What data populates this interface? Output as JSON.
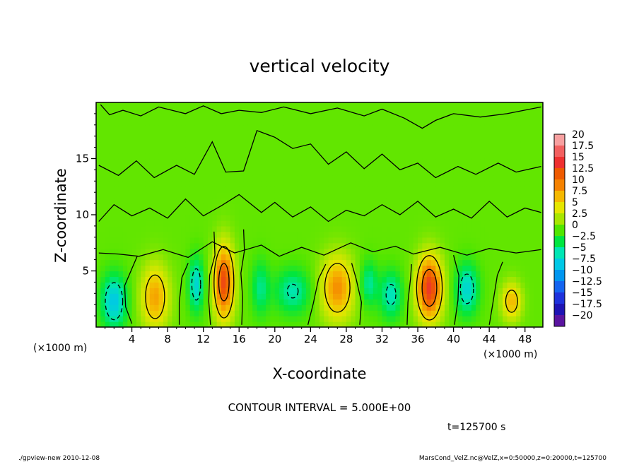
{
  "chart_data": {
    "type": "heatmap",
    "title": "vertical velocity",
    "xlabel": "X-coordinate",
    "ylabel": "Z-coordinate",
    "x_unit": "(×1000 m)",
    "y_unit": "(×1000 m)",
    "xlim": [
      0,
      50
    ],
    "ylim": [
      0,
      20
    ],
    "x_ticks": [
      "4",
      "8",
      "12",
      "16",
      "20",
      "24",
      "28",
      "32",
      "36",
      "40",
      "44",
      "48"
    ],
    "x_tick_values": [
      4,
      8,
      12,
      16,
      20,
      24,
      28,
      32,
      36,
      40,
      44,
      48
    ],
    "y_ticks": [
      "5",
      "10",
      "15"
    ],
    "y_tick_values": [
      5,
      10,
      15
    ],
    "contour_interval_text": "CONTOUR INTERVAL = 5.000E+00",
    "time_text": "t=125700 s",
    "colorbar": {
      "labels": [
        "20",
        "17.5",
        "15",
        "12.5",
        "10",
        "7.5",
        "5",
        "2.5",
        "0",
        "−2.5",
        "−5",
        "−7.5",
        "−10",
        "−12.5",
        "−15",
        "−17.5",
        "−20"
      ],
      "values": [
        20,
        17.5,
        15,
        12.5,
        10,
        7.5,
        5,
        2.5,
        0,
        -2.5,
        -5,
        -7.5,
        -10,
        -12.5,
        -15,
        -17.5,
        -20
      ],
      "colors": [
        "#f7a0a0",
        "#f26060",
        "#ee3030",
        "#ee5a00",
        "#f58200",
        "#f5b800",
        "#e6e600",
        "#a8e600",
        "#50e600",
        "#00e640",
        "#00e6b4",
        "#00c8e6",
        "#0096f0",
        "#1464f0",
        "#1e32dc",
        "#1e14b4",
        "#5a14a0"
      ]
    },
    "background_w": 0.5,
    "features": [
      {
        "x": 2.0,
        "z": 2.3,
        "w": -8,
        "sx": 1.0,
        "sz": 1.7
      },
      {
        "x": 6.6,
        "z": 2.7,
        "w": 8,
        "sx": 1.1,
        "sz": 2.0
      },
      {
        "x": 11.2,
        "z": 3.8,
        "w": -7,
        "sx": 0.6,
        "sz": 1.7
      },
      {
        "x": 14.3,
        "z": 4.0,
        "w": 13,
        "sx": 0.8,
        "sz": 2.3
      },
      {
        "x": 18.4,
        "z": 3.5,
        "w": -4.5,
        "sx": 0.7,
        "sz": 1.7
      },
      {
        "x": 22.0,
        "z": 3.2,
        "w": -5.5,
        "sx": 1.4,
        "sz": 1.4
      },
      {
        "x": 27.0,
        "z": 3.5,
        "w": 9,
        "sx": 1.3,
        "sz": 2.0
      },
      {
        "x": 30.5,
        "z": 3.9,
        "w": -5,
        "sx": 0.7,
        "sz": 1.4
      },
      {
        "x": 33.0,
        "z": 2.9,
        "w": -6,
        "sx": 0.9,
        "sz": 1.5
      },
      {
        "x": 37.3,
        "z": 3.5,
        "w": 14,
        "sx": 1.0,
        "sz": 2.0
      },
      {
        "x": 41.5,
        "z": 3.4,
        "w": -7,
        "sx": 0.9,
        "sz": 1.6
      },
      {
        "x": 46.5,
        "z": 2.3,
        "w": 7,
        "sx": 0.8,
        "sz": 1.2
      }
    ],
    "zero_contours": [
      [
        [
          4.0,
          0.3
        ],
        [
          3.3,
          1.8
        ],
        [
          3.2,
          3.7
        ],
        [
          4.0,
          5.2
        ],
        [
          4.6,
          6.3
        ]
      ],
      [
        [
          9.3,
          0.2
        ],
        [
          9.3,
          2.2
        ],
        [
          9.6,
          4.4
        ],
        [
          10.3,
          5.7
        ]
      ],
      [
        [
          12.8,
          0.2
        ],
        [
          12.6,
          2.3
        ],
        [
          12.7,
          4.6
        ],
        [
          13.3,
          6.4
        ],
        [
          13.2,
          8.5
        ]
      ],
      [
        [
          16.3,
          0.2
        ],
        [
          16.4,
          2.6
        ],
        [
          16.2,
          4.8
        ],
        [
          16.6,
          6.8
        ],
        [
          16.5,
          8.7
        ]
      ],
      [
        [
          23.7,
          0.2
        ],
        [
          24.3,
          2.1
        ],
        [
          24.9,
          4.3
        ],
        [
          25.7,
          5.6
        ]
      ],
      [
        [
          29.5,
          0.2
        ],
        [
          29.7,
          2.2
        ],
        [
          29.1,
          4.3
        ],
        [
          28.6,
          5.7
        ]
      ],
      [
        [
          34.8,
          0.2
        ],
        [
          34.9,
          2.2
        ],
        [
          35.2,
          4.4
        ],
        [
          35.3,
          5.6
        ]
      ],
      [
        [
          40.1,
          0.2
        ],
        [
          40.5,
          2.4
        ],
        [
          40.6,
          4.6
        ],
        [
          40.0,
          6.4
        ]
      ],
      [
        [
          44.0,
          0.2
        ],
        [
          44.4,
          2.1
        ],
        [
          44.9,
          4.6
        ],
        [
          45.5,
          5.8
        ]
      ],
      [
        [
          0.3,
          6.6
        ],
        [
          2.5,
          6.5
        ],
        [
          4.8,
          6.3
        ],
        [
          7.5,
          6.9
        ],
        [
          10.3,
          6.2
        ],
        [
          13.0,
          7.6
        ],
        [
          15.5,
          6.6
        ],
        [
          18.5,
          7.3
        ],
        [
          20.5,
          6.3
        ],
        [
          23.0,
          7.1
        ],
        [
          25.5,
          6.4
        ],
        [
          28.5,
          7.5
        ],
        [
          31.0,
          6.7
        ],
        [
          33.5,
          7.2
        ],
        [
          35.5,
          6.5
        ],
        [
          38.5,
          7.1
        ],
        [
          41.5,
          6.4
        ],
        [
          44.0,
          7.0
        ],
        [
          47.0,
          6.6
        ],
        [
          49.8,
          6.9
        ]
      ],
      [
        [
          0.3,
          9.4
        ],
        [
          2.0,
          10.9
        ],
        [
          4.0,
          9.9
        ],
        [
          6.0,
          10.6
        ],
        [
          8.0,
          9.7
        ],
        [
          10.0,
          11.4
        ],
        [
          12.0,
          9.9
        ],
        [
          14.0,
          10.8
        ],
        [
          16.0,
          11.8
        ],
        [
          18.5,
          10.2
        ],
        [
          20.0,
          11.1
        ],
        [
          22.0,
          9.8
        ],
        [
          24.0,
          10.7
        ],
        [
          26.0,
          9.4
        ],
        [
          28.0,
          10.4
        ],
        [
          30.0,
          9.9
        ],
        [
          32.0,
          10.9
        ],
        [
          34.0,
          10.0
        ],
        [
          36.0,
          11.2
        ],
        [
          38.0,
          9.8
        ],
        [
          40.0,
          10.5
        ],
        [
          42.0,
          9.7
        ],
        [
          44.0,
          11.2
        ],
        [
          46.0,
          9.8
        ],
        [
          48.0,
          10.6
        ],
        [
          49.8,
          10.2
        ]
      ],
      [
        [
          0.3,
          14.4
        ],
        [
          2.5,
          13.5
        ],
        [
          4.5,
          14.8
        ],
        [
          6.5,
          13.3
        ],
        [
          9.0,
          14.4
        ],
        [
          11.0,
          13.6
        ],
        [
          13.0,
          16.5
        ],
        [
          14.5,
          13.8
        ],
        [
          16.5,
          13.9
        ],
        [
          18.0,
          17.5
        ],
        [
          20.0,
          16.9
        ],
        [
          22.0,
          15.9
        ],
        [
          24.0,
          16.3
        ],
        [
          26.0,
          14.5
        ],
        [
          28.0,
          15.6
        ],
        [
          30.0,
          14.1
        ],
        [
          32.0,
          15.4
        ],
        [
          34.0,
          14.0
        ],
        [
          36.0,
          14.6
        ],
        [
          38.0,
          13.3
        ],
        [
          40.5,
          14.3
        ],
        [
          42.5,
          13.6
        ],
        [
          45.0,
          14.6
        ],
        [
          47.0,
          13.8
        ],
        [
          49.8,
          14.3
        ]
      ],
      [
        [
          0.5,
          19.8
        ],
        [
          1.5,
          18.9
        ],
        [
          3.0,
          19.3
        ],
        [
          5.0,
          18.8
        ],
        [
          7.0,
          19.6
        ],
        [
          10.0,
          19.0
        ],
        [
          12.0,
          19.7
        ],
        [
          14.0,
          19.0
        ],
        [
          16.0,
          19.3
        ],
        [
          18.5,
          19.1
        ],
        [
          21.0,
          19.6
        ],
        [
          24.0,
          19.0
        ],
        [
          27.0,
          19.5
        ],
        [
          30.0,
          18.8
        ],
        [
          32.0,
          19.4
        ],
        [
          34.5,
          18.6
        ],
        [
          36.5,
          17.7
        ],
        [
          38.0,
          18.4
        ],
        [
          40.0,
          19.0
        ],
        [
          43.0,
          18.7
        ],
        [
          46.0,
          19.0
        ],
        [
          49.8,
          19.6
        ]
      ]
    ]
  },
  "footer": {
    "left_text": "./gpview-new  2010-12-08",
    "right_text": "MarsCond_VelZ.nc@VelZ,x=0:50000,z=0:20000,t=125700"
  }
}
